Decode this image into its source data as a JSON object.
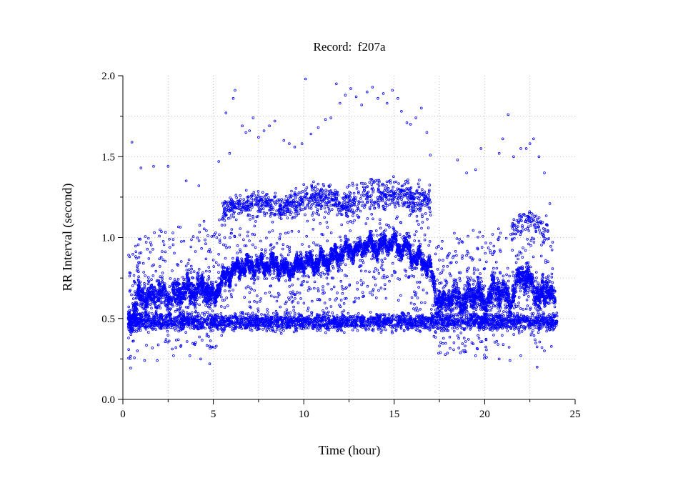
{
  "chart_data": {
    "type": "scatter",
    "title": "Record:  f207a",
    "xlabel": "Time (hour)",
    "ylabel": "RR Interval (second)",
    "xlim": [
      0,
      25
    ],
    "ylim": [
      0,
      2
    ],
    "xticks": [
      0,
      5,
      10,
      15,
      20,
      25
    ],
    "xtick_labels": [
      "0",
      "5",
      "10",
      "15",
      "20",
      "25"
    ],
    "yticks": [
      0,
      0.5,
      1,
      1.5,
      2
    ],
    "ytick_labels": [
      "0.0",
      "0.5",
      "1.0",
      "1.5",
      "2.0"
    ],
    "grid": true,
    "marker_color": "#0000ff",
    "axis_color": "#000000",
    "series": [
      {
        "marker": "circle",
        "trend": {
          "x": [
            0.3,
            0.6,
            1.0,
            1.5,
            2.0,
            2.5,
            3.0,
            3.5,
            4.0,
            4.5,
            5.0,
            5.3,
            5.8,
            6.5,
            7.5,
            8.5,
            9.0,
            9.5,
            10.0,
            10.5,
            11.0,
            11.5,
            12.0,
            12.5,
            13.0,
            13.5,
            14.0,
            14.5,
            15.0,
            15.3,
            15.6,
            16.0,
            16.5,
            17.0,
            17.3,
            17.8,
            18.3,
            18.8,
            19.5,
            20.0,
            20.5,
            21.0,
            21.5,
            22.0,
            22.5,
            23.0,
            23.5,
            23.9
          ],
          "y": [
            0.48,
            0.55,
            0.65,
            0.62,
            0.66,
            0.62,
            0.65,
            0.68,
            0.67,
            0.69,
            0.62,
            0.7,
            0.78,
            0.82,
            0.82,
            0.84,
            0.8,
            0.82,
            0.85,
            0.84,
            0.86,
            0.87,
            0.89,
            0.93,
            0.92,
            0.96,
            0.94,
            0.96,
            0.98,
            0.92,
            0.96,
            0.88,
            0.86,
            0.82,
            0.62,
            0.6,
            0.64,
            0.6,
            0.66,
            0.58,
            0.68,
            0.66,
            0.62,
            0.77,
            0.74,
            0.62,
            0.7,
            0.6
          ]
        },
        "bands": [
          {
            "x": [
              0.3,
              24.0
            ],
            "y": 0.48,
            "spread": 0.05,
            "density": 2800
          },
          {
            "x": [
              5.5,
              9.0
            ],
            "y": 1.17,
            "spread": 0.07,
            "density": 260
          },
          {
            "x": [
              9.0,
              12.5
            ],
            "y": 1.2,
            "spread": 0.08,
            "density": 300
          },
          {
            "x": [
              12.5,
              17.0
            ],
            "y": 1.22,
            "spread": 0.09,
            "density": 320
          },
          {
            "x": [
              21.5,
              23.5
            ],
            "y": 1.05,
            "spread": 0.07,
            "density": 90
          }
        ],
        "outliers": [
          [
            0.5,
            1.59
          ],
          [
            1.0,
            1.43
          ],
          [
            1.7,
            1.44
          ],
          [
            2.5,
            1.44
          ],
          [
            3.5,
            1.35
          ],
          [
            4.2,
            1.32
          ],
          [
            5.3,
            1.47
          ],
          [
            5.7,
            1.77
          ],
          [
            5.9,
            1.52
          ],
          [
            6.1,
            1.86
          ],
          [
            6.2,
            1.91
          ],
          [
            6.6,
            1.69
          ],
          [
            6.8,
            1.65
          ],
          [
            7.0,
            1.66
          ],
          [
            7.2,
            1.74
          ],
          [
            7.5,
            1.62
          ],
          [
            7.8,
            1.66
          ],
          [
            8.1,
            1.69
          ],
          [
            8.4,
            1.72
          ],
          [
            8.9,
            1.6
          ],
          [
            9.2,
            1.58
          ],
          [
            9.5,
            1.56
          ],
          [
            9.9,
            1.58
          ],
          [
            10.1,
            1.98
          ],
          [
            10.4,
            1.64
          ],
          [
            10.8,
            1.68
          ],
          [
            11.2,
            1.73
          ],
          [
            11.5,
            1.74
          ],
          [
            11.8,
            1.95
          ],
          [
            12.0,
            1.83
          ],
          [
            12.3,
            1.88
          ],
          [
            12.6,
            1.92
          ],
          [
            12.9,
            1.87
          ],
          [
            13.2,
            1.82
          ],
          [
            13.5,
            1.9
          ],
          [
            13.8,
            1.93
          ],
          [
            14.1,
            1.86
          ],
          [
            14.4,
            1.89
          ],
          [
            14.6,
            1.83
          ],
          [
            14.9,
            1.91
          ],
          [
            15.2,
            1.86
          ],
          [
            15.4,
            1.78
          ],
          [
            15.7,
            1.71
          ],
          [
            15.9,
            1.7
          ],
          [
            16.2,
            1.74
          ],
          [
            16.5,
            1.8
          ],
          [
            16.8,
            1.65
          ],
          [
            17.0,
            1.51
          ],
          [
            18.5,
            1.48
          ],
          [
            19.0,
            1.4
          ],
          [
            19.5,
            1.42
          ],
          [
            19.8,
            1.55
          ],
          [
            20.8,
            1.52
          ],
          [
            21.0,
            1.61
          ],
          [
            21.3,
            1.76
          ],
          [
            21.6,
            1.5
          ],
          [
            22.0,
            1.55
          ],
          [
            22.3,
            1.55
          ],
          [
            22.5,
            1.58
          ],
          [
            22.7,
            1.61
          ],
          [
            23.0,
            1.5
          ],
          [
            23.3,
            1.4
          ],
          [
            23.6,
            1.21
          ],
          [
            0.8,
            0.3
          ],
          [
            1.2,
            0.24
          ],
          [
            1.9,
            0.24
          ],
          [
            2.8,
            0.27
          ],
          [
            3.7,
            0.27
          ],
          [
            4.3,
            0.25
          ],
          [
            4.8,
            0.22
          ],
          [
            17.5,
            0.33
          ],
          [
            18.3,
            0.35
          ],
          [
            18.8,
            0.3
          ],
          [
            19.5,
            0.27
          ],
          [
            20.1,
            0.26
          ],
          [
            20.8,
            0.25
          ],
          [
            21.4,
            0.24
          ],
          [
            22.0,
            0.27
          ],
          [
            22.9,
            0.2
          ],
          [
            23.3,
            0.3
          ]
        ]
      }
    ]
  }
}
